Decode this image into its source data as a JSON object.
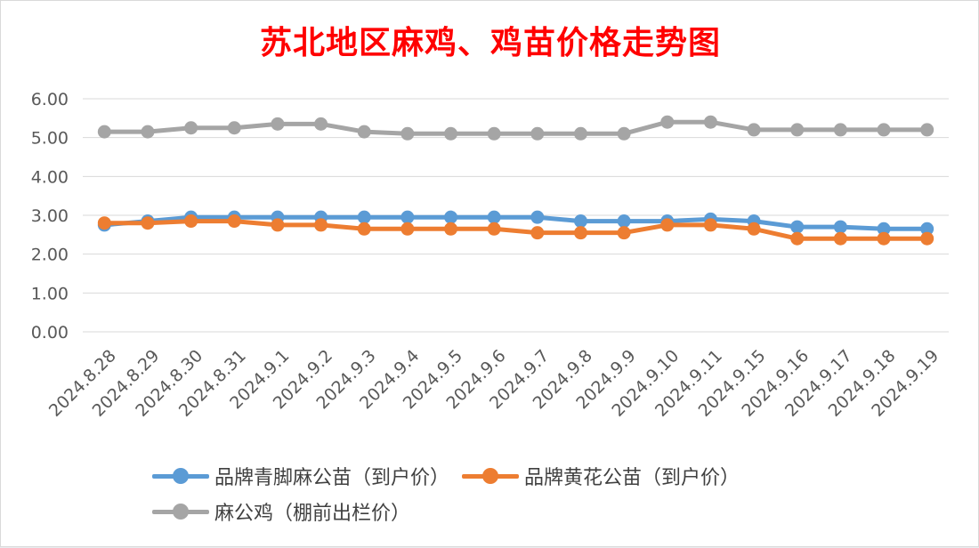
{
  "title": "苏北地区麻鸡、鸡苗价格走势图",
  "chart_data": {
    "type": "line",
    "title": "苏北地区麻鸡、鸡苗价格走势图",
    "categories": [
      "2024.8.28",
      "2024.8.29",
      "2024.8.30",
      "2024.8.31",
      "2024.9.1",
      "2024.9.2",
      "2024.9.3",
      "2024.9.4",
      "2024.9.5",
      "2024.9.6",
      "2024.9.7",
      "2024.9.8",
      "2024.9.9",
      "2024.9.10",
      "2024.9.11",
      "2024.9.15",
      "2024.9.16",
      "2024.9.17",
      "2024.9.18",
      "2024.9.19"
    ],
    "series": [
      {
        "name": "品牌青脚麻公苗（到户价）",
        "color": "#5b9bd5",
        "values": [
          2.75,
          2.85,
          2.95,
          2.95,
          2.95,
          2.95,
          2.95,
          2.95,
          2.95,
          2.95,
          2.95,
          2.85,
          2.85,
          2.85,
          2.9,
          2.85,
          2.7,
          2.7,
          2.65,
          2.65
        ]
      },
      {
        "name": "品牌黄花公苗（到户价）",
        "color": "#ed7d31",
        "values": [
          2.8,
          2.8,
          2.85,
          2.85,
          2.75,
          2.75,
          2.65,
          2.65,
          2.65,
          2.65,
          2.55,
          2.55,
          2.55,
          2.75,
          2.75,
          2.65,
          2.4,
          2.4,
          2.4,
          2.4
        ]
      },
      {
        "name": "麻公鸡（棚前出栏价）",
        "color": "#a5a5a5",
        "values": [
          5.15,
          5.15,
          5.25,
          5.25,
          5.35,
          5.35,
          5.15,
          5.1,
          5.1,
          5.1,
          5.1,
          5.1,
          5.1,
          5.4,
          5.4,
          5.2,
          5.2,
          5.2,
          5.2,
          5.2
        ]
      }
    ],
    "yticks": [
      "0.00",
      "1.00",
      "2.00",
      "3.00",
      "4.00",
      "5.00",
      "6.00"
    ],
    "ylim": [
      0,
      6
    ],
    "grid": true,
    "legend": "bottom"
  }
}
